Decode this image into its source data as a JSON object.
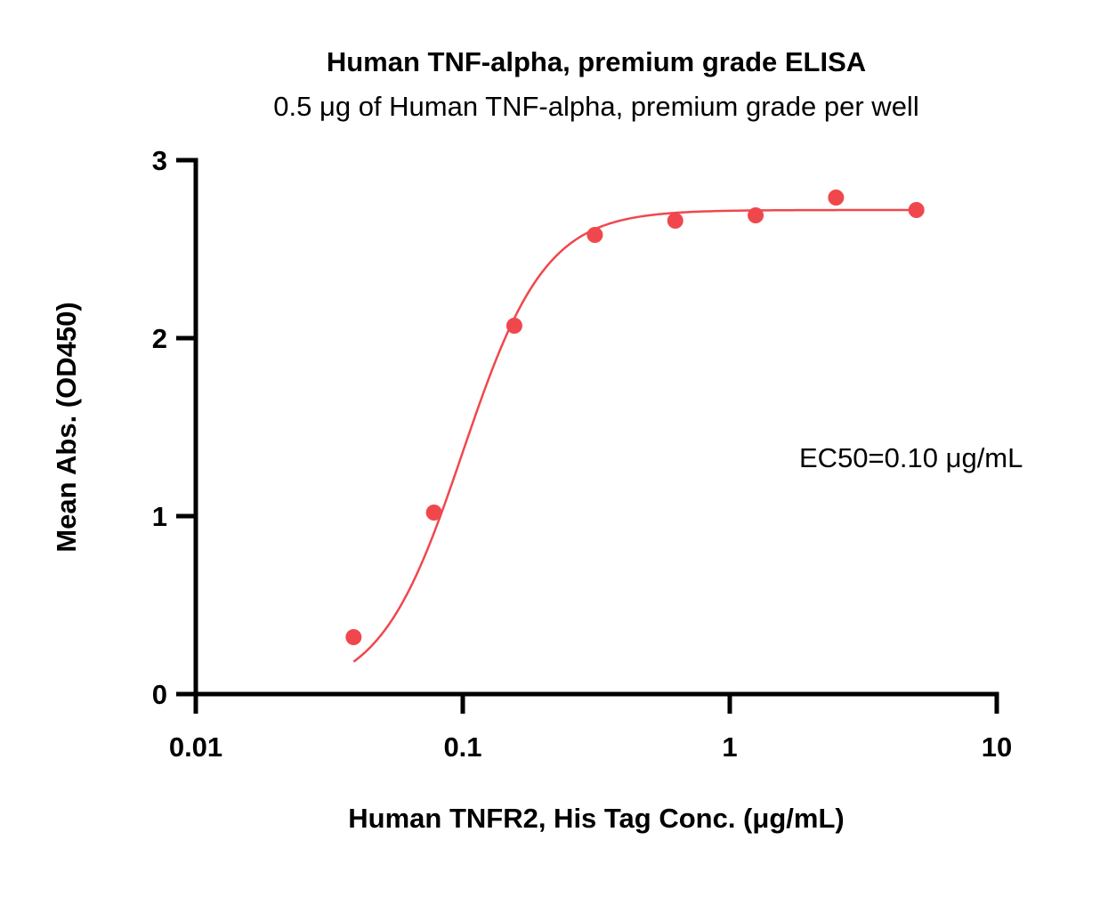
{
  "chart_data": {
    "type": "scatter",
    "title": "Human TNF-alpha, premium grade ELISA",
    "subtitle": "0.5 μg of Human TNF-alpha, premium grade per well",
    "xlabel": "Human TNFR2, His Tag Conc. (μg/mL)",
    "ylabel": "Mean Abs. (OD450)",
    "x_scale": "log",
    "xlim": [
      0.01,
      10
    ],
    "ylim": [
      0,
      3
    ],
    "x_ticks": [
      0.01,
      0.1,
      1,
      10
    ],
    "x_tick_labels": [
      "0.01",
      "0.1",
      "1",
      "10"
    ],
    "y_ticks": [
      0,
      1,
      2,
      3
    ],
    "y_tick_labels": [
      "0",
      "1",
      "2",
      "3"
    ],
    "grid": false,
    "series": [
      {
        "color": "#f0474d",
        "x": [
          0.039,
          0.078,
          0.156,
          0.3125,
          0.625,
          1.25,
          2.5,
          5.0
        ],
        "y": [
          0.32,
          1.02,
          2.07,
          2.58,
          2.66,
          2.69,
          2.79,
          2.72
        ]
      }
    ],
    "fit_curve": {
      "type": "4PL",
      "color": "#f0474d",
      "bottom": 0.0,
      "top": 2.72,
      "ec50": 0.1,
      "hill": 2.8
    },
    "annotation": "EC50=0.10 μg/mL"
  }
}
